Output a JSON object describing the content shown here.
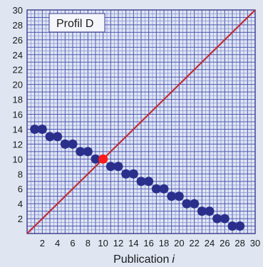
{
  "chart_data": {
    "type": "scatter",
    "title": "",
    "xlabel": "Publication",
    "xlabel_var": "i",
    "ylabel": "",
    "xlim": [
      0,
      30
    ],
    "ylim": [
      0,
      30
    ],
    "x_ticks": [
      2,
      4,
      6,
      8,
      10,
      12,
      14,
      16,
      18,
      20,
      22,
      24,
      26,
      28,
      30
    ],
    "y_ticks": [
      2,
      4,
      6,
      8,
      10,
      12,
      14,
      16,
      18,
      20,
      22,
      24,
      26,
      28,
      30
    ],
    "grid": true,
    "legend_box_label": "Profil D",
    "series": [
      {
        "color": "#2a2f8c",
        "points": [
          [
            1,
            14
          ],
          [
            2,
            14
          ],
          [
            3,
            13
          ],
          [
            4,
            13
          ],
          [
            5,
            12
          ],
          [
            6,
            12
          ],
          [
            7,
            11
          ],
          [
            8,
            11
          ],
          [
            9,
            10
          ],
          [
            11,
            9
          ],
          [
            12,
            9
          ],
          [
            13,
            8
          ],
          [
            14,
            8
          ],
          [
            15,
            7
          ],
          [
            16,
            7
          ],
          [
            17,
            6
          ],
          [
            18,
            6
          ],
          [
            19,
            5
          ],
          [
            20,
            5
          ],
          [
            21,
            4
          ],
          [
            22,
            4
          ],
          [
            23,
            3
          ],
          [
            24,
            3
          ],
          [
            25,
            2
          ],
          [
            26,
            2
          ],
          [
            27,
            1
          ],
          [
            28,
            1
          ]
        ]
      },
      {
        "color": "#ff1a1a",
        "points": [
          [
            10,
            10
          ]
        ]
      }
    ],
    "reference_line": {
      "from": [
        0,
        0
      ],
      "to": [
        30,
        30
      ],
      "color": "#c0272d"
    },
    "colors": {
      "plot_bg": "#dfe6f2",
      "grid_fine": "#7a82d0",
      "grid_major": "#4d55b4",
      "frame": "#3a3a8c"
    }
  }
}
